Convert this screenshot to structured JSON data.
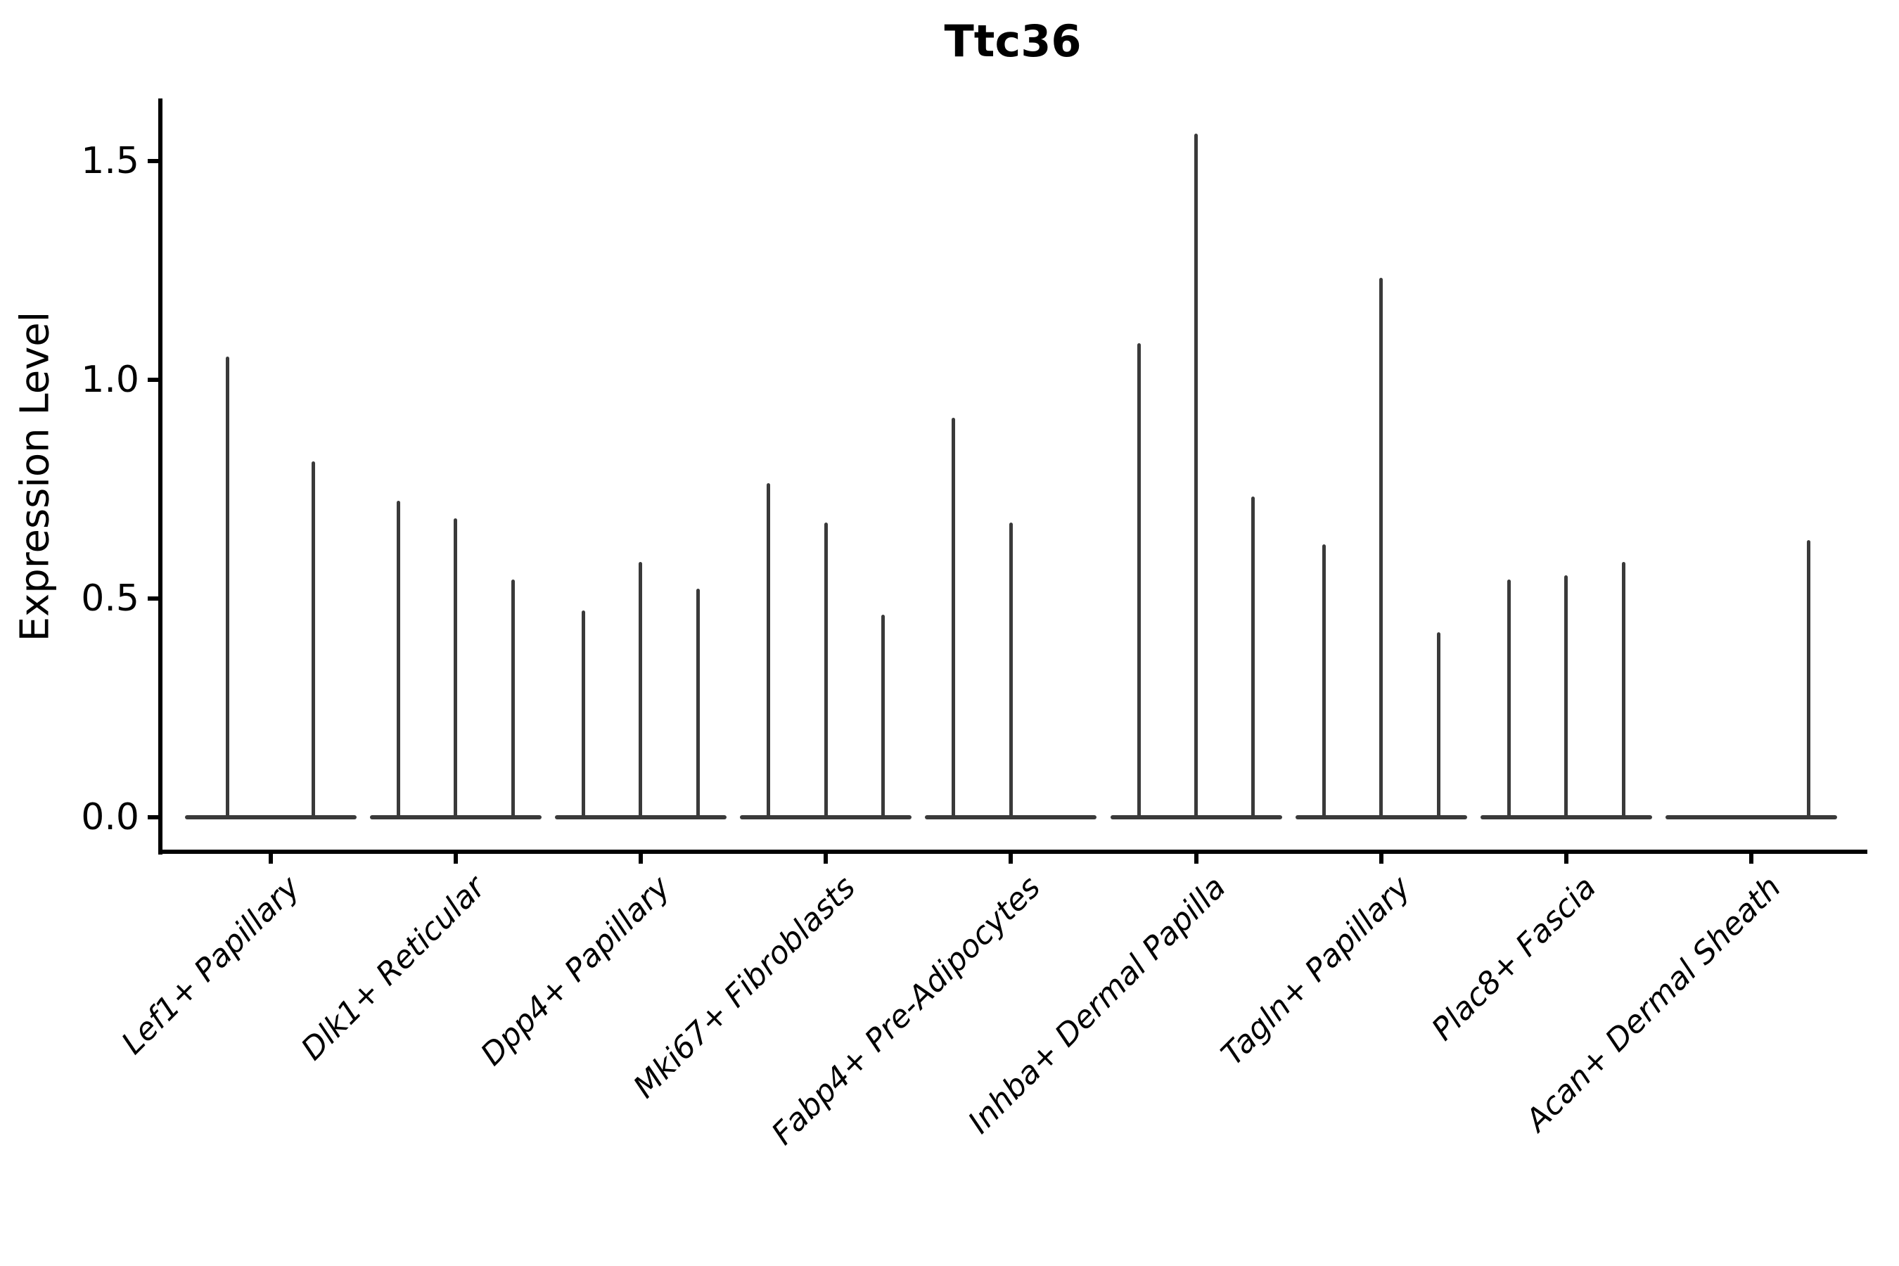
{
  "title": "Ttc36",
  "chart_data": {
    "type": "violin",
    "title": "Ttc36",
    "xlabel": "",
    "ylabel": "Expression Level",
    "legend": "none",
    "grid": false,
    "ylim": [
      -0.08,
      1.65
    ],
    "yticks": [
      {
        "value": 0.0,
        "label": "0.0"
      },
      {
        "value": 0.5,
        "label": "0.5"
      },
      {
        "value": 1.0,
        "label": "1.0"
      },
      {
        "value": 1.5,
        "label": "1.5"
      }
    ],
    "categories": [
      "Lef1+ Papillary",
      "Dlk1+ Reticular",
      "Dpp4+ Papillary",
      "Mki67+ Fibroblasts",
      "Fabp4+ Pre-Adipocytes",
      "Inhba+ Dermal Papilla",
      "Tagln+ Papillary",
      "Plac8+ Fascia",
      "Acan+ Dermal Sheath"
    ],
    "description": "Violin plot of Ttc36 expression; violins are collapsed flat at 0 with thin spikes to the max expression value. Spike pos = fractional position of each sub-violin within its category slot.",
    "groups": [
      {
        "category": "Lef1+ Papillary",
        "spikes": [
          {
            "pos": 0.25,
            "max": 1.05
          },
          {
            "pos": 0.75,
            "max": 0.81
          }
        ]
      },
      {
        "category": "Dlk1+ Reticular",
        "spikes": [
          {
            "pos": 0.1667,
            "max": 0.72
          },
          {
            "pos": 0.5,
            "max": 0.68
          },
          {
            "pos": 0.8333,
            "max": 0.54
          }
        ]
      },
      {
        "category": "Dpp4+ Papillary",
        "spikes": [
          {
            "pos": 0.1667,
            "max": 0.47
          },
          {
            "pos": 0.5,
            "max": 0.58
          },
          {
            "pos": 0.8333,
            "max": 0.52
          }
        ]
      },
      {
        "category": "Mki67+ Fibroblasts",
        "spikes": [
          {
            "pos": 0.1667,
            "max": 0.76
          },
          {
            "pos": 0.5,
            "max": 0.67
          },
          {
            "pos": 0.8333,
            "max": 0.46
          }
        ]
      },
      {
        "category": "Fabp4+ Pre-Adipocytes",
        "spikes": [
          {
            "pos": 0.1667,
            "max": 0.91
          },
          {
            "pos": 0.5,
            "max": 0.67
          },
          {
            "pos": 0.8333,
            "max": 0.0
          }
        ]
      },
      {
        "category": "Inhba+ Dermal Papilla",
        "spikes": [
          {
            "pos": 0.1667,
            "max": 1.08
          },
          {
            "pos": 0.5,
            "max": 1.56
          },
          {
            "pos": 0.8333,
            "max": 0.73
          }
        ]
      },
      {
        "category": "Tagln+ Papillary",
        "spikes": [
          {
            "pos": 0.1667,
            "max": 0.62
          },
          {
            "pos": 0.5,
            "max": 1.23
          },
          {
            "pos": 0.8333,
            "max": 0.42
          }
        ]
      },
      {
        "category": "Plac8+ Fascia",
        "spikes": [
          {
            "pos": 0.1667,
            "max": 0.54
          },
          {
            "pos": 0.5,
            "max": 0.55
          },
          {
            "pos": 0.8333,
            "max": 0.58
          }
        ]
      },
      {
        "category": "Acan+ Dermal Sheath",
        "spikes": [
          {
            "pos": 0.8333,
            "max": 0.63
          }
        ]
      }
    ],
    "colors": {
      "violin": "#3a3a3a",
      "axis": "#000000",
      "text": "#000000",
      "background": "#ffffff"
    }
  }
}
